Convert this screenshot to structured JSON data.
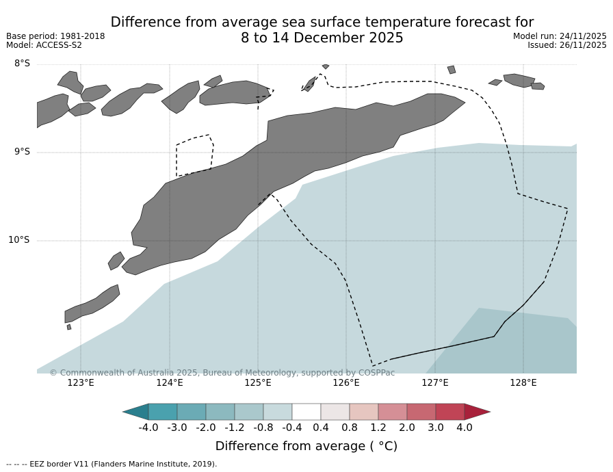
{
  "header": {
    "title_line1": "Difference from average sea surface temperature forecast for",
    "title_line2": "8 to 14 December 2025",
    "base_period": "Base period: 1981-2018",
    "model": "Model: ACCESS-S2",
    "model_run": "Model run: 24/11/2025",
    "issued": "Issued: 26/11/2025"
  },
  "map": {
    "lat_labels": [
      "8°S",
      "9°S",
      "10°S"
    ],
    "lon_labels": [
      "123°E",
      "124°E",
      "125°E",
      "126°E",
      "127°E",
      "128°E"
    ],
    "copyright": "© Commonwealth of Australia 2025, Bureau of Meteorology, supported by COSPPac",
    "colors": {
      "land": "#808080",
      "sea_minus_0_8": "#c6d9dd",
      "sea_minus_1_2": "#a9c6cb",
      "eez_line": "#000000"
    }
  },
  "colorbar": {
    "labels": [
      "-4.0",
      "-3.0",
      "-2.0",
      "-1.2",
      "-0.8",
      "-0.4",
      "0.4",
      "0.8",
      "1.2",
      "2.0",
      "3.0",
      "4.0"
    ],
    "colors": [
      "#2a7f8e",
      "#4aa1ae",
      "#6babb5",
      "#8cb9bf",
      "#aac8cc",
      "#c8dadd",
      "#ffffff",
      "#ece6e6",
      "#e6c6c0",
      "#d58f96",
      "#c76872",
      "#c04456",
      "#a8213b"
    ],
    "title": "Difference from average ( °C)"
  },
  "footer": {
    "eez_legend_marker": "-- -- --",
    "eez_legend": "EEZ border V11 (Flanders Marine Institute, 2019)."
  }
}
